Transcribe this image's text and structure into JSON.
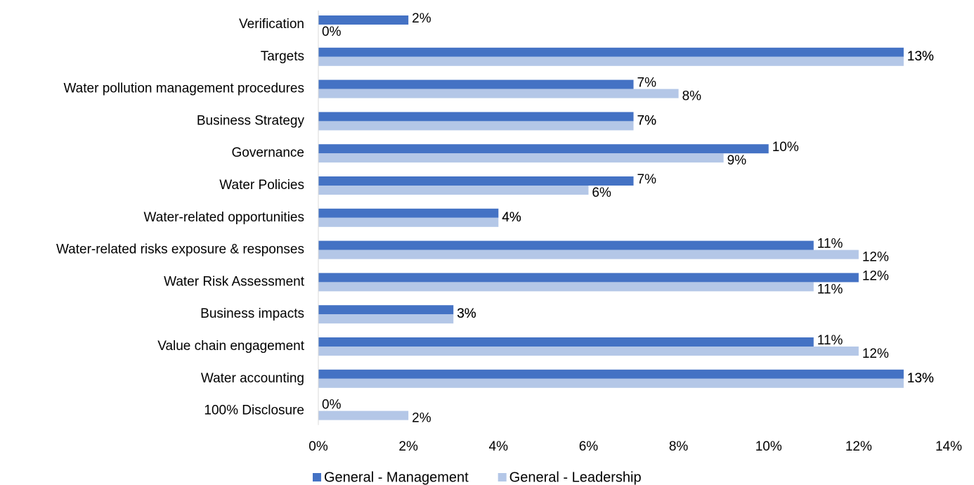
{
  "chart_data": {
    "type": "bar",
    "orientation": "horizontal",
    "categories": [
      "Verification",
      "Targets",
      "Water pollution management procedures",
      "Business Strategy",
      "Governance",
      "Water Policies",
      "Water-related opportunities",
      "Water-related risks exposure & responses",
      "Water Risk Assessment",
      "Business impacts",
      "Value chain engagement",
      "Water accounting",
      "100% Disclosure"
    ],
    "series": [
      {
        "name": "General - Management",
        "color": "#4472c4",
        "values": [
          2,
          13,
          7,
          7,
          10,
          7,
          4,
          11,
          12,
          3,
          11,
          13,
          0
        ],
        "value_labels": [
          "2%",
          "13%",
          "7%",
          "7%",
          "10%",
          "7%",
          "4%",
          "11%",
          "12%",
          "3%",
          "11%",
          "13%",
          "0%"
        ]
      },
      {
        "name": "General - Leadership",
        "color": "#b4c7e7",
        "values": [
          0,
          13,
          8,
          7,
          9,
          6,
          4,
          12,
          11,
          3,
          12,
          13,
          2
        ],
        "value_labels": [
          "0%",
          "13%",
          "8%",
          "7%",
          "9%",
          "6%",
          "4%",
          "12%",
          "11%",
          "3%",
          "12%",
          "13%",
          "2%"
        ]
      }
    ],
    "xlim": [
      0,
      14
    ],
    "xticks": [
      {
        "value": 0,
        "label": "0%"
      },
      {
        "value": 2,
        "label": "2%"
      },
      {
        "value": 4,
        "label": "4%"
      },
      {
        "value": 6,
        "label": "6%"
      },
      {
        "value": 8,
        "label": "8%"
      },
      {
        "value": 10,
        "label": "10%"
      },
      {
        "value": 12,
        "label": "12%"
      },
      {
        "value": 14,
        "label": "14%"
      }
    ],
    "grid": false,
    "legend": "bottom"
  }
}
